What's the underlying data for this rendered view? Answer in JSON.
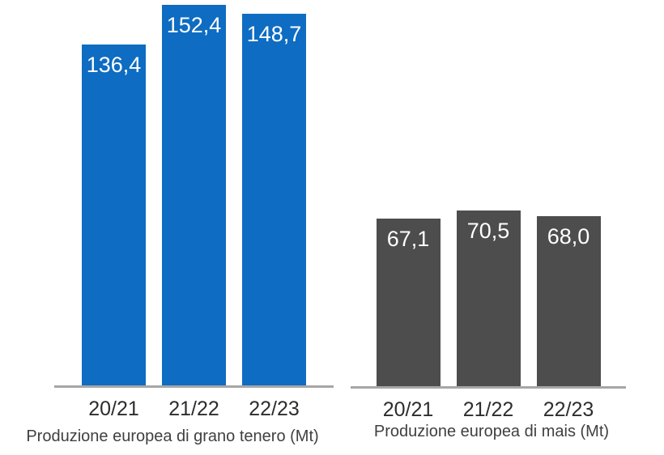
{
  "page": {
    "background_color": "#ffffff"
  },
  "chart_data": [
    {
      "type": "bar",
      "title": "Produzione europea di grano tenero (Mt)",
      "categories": [
        "20/21",
        "21/22",
        "22/23"
      ],
      "values": [
        136.4,
        152.4,
        148.7
      ],
      "value_labels": [
        "136,4",
        "152,4",
        "148,7"
      ],
      "bar_color": "#0e6cc2",
      "value_label_color": "#ffffff",
      "axis_line_color": "#a6a6a6",
      "xlabel": "",
      "ylabel": "",
      "ylim": [
        0,
        152.4
      ],
      "grid": false,
      "legend": false,
      "value_labels_position": "inside-top"
    },
    {
      "type": "bar",
      "title": "Produzione europea di mais (Mt)",
      "categories": [
        "20/21",
        "21/22",
        "22/23"
      ],
      "values": [
        67.1,
        70.5,
        68.0
      ],
      "value_labels": [
        "67,1",
        "70,5",
        "68,0"
      ],
      "bar_color": "#4d4d4d",
      "value_label_color": "#ffffff",
      "axis_line_color": "#a6a6a6",
      "xlabel": "",
      "ylabel": "",
      "ylim": [
        0,
        152.4
      ],
      "grid": false,
      "legend": false,
      "value_labels_position": "inside-top"
    }
  ]
}
